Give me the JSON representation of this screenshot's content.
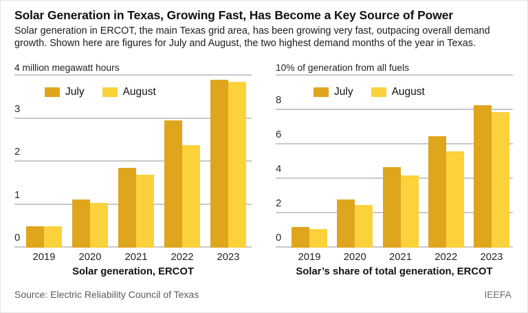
{
  "header": {
    "title": "Solar Generation in Texas, Growing Fast, Has Become a Key Source of Power",
    "subtitle": "Solar generation in ERCOT, the main Texas grid area, has been growing very fast, outpacing overall demand growth. Shown here are figures for July and August, the two highest demand months of the year in Texas."
  },
  "legend": {
    "july": "July",
    "august": "August"
  },
  "colors": {
    "july": "#DFA51D",
    "august": "#FBD13C",
    "gridline": "#C8C8C8"
  },
  "footer": {
    "source": "Source: Electric Reliability Council of Texas",
    "credit": "IEEFA"
  },
  "chart_data": [
    {
      "type": "bar",
      "title": "4 million megawatt hours",
      "xlabel": "Solar generation, ERCOT",
      "categories": [
        "2019",
        "2020",
        "2021",
        "2022",
        "2023"
      ],
      "series": [
        {
          "name": "July",
          "values": [
            0.5,
            1.12,
            1.85,
            2.96,
            3.9
          ]
        },
        {
          "name": "August",
          "values": [
            0.49,
            1.04,
            1.7,
            2.39,
            3.86
          ]
        }
      ],
      "ylim": [
        0,
        4
      ],
      "yticks": [
        0,
        1,
        2,
        3,
        4
      ],
      "grid": true,
      "legend_position": "top-left"
    },
    {
      "type": "bar",
      "title": "10% of generation from all fuels",
      "xlabel": "Solar’s share of total generation, ERCOT",
      "categories": [
        "2019",
        "2020",
        "2021",
        "2022",
        "2023"
      ],
      "series": [
        {
          "name": "July",
          "values": [
            1.2,
            2.8,
            4.7,
            6.5,
            8.3
          ]
        },
        {
          "name": "August",
          "values": [
            1.1,
            2.5,
            4.2,
            5.6,
            7.9
          ]
        }
      ],
      "ylim": [
        0,
        10
      ],
      "yticks": [
        0,
        2,
        4,
        6,
        8,
        10
      ],
      "grid": true,
      "legend_position": "top-left"
    }
  ]
}
